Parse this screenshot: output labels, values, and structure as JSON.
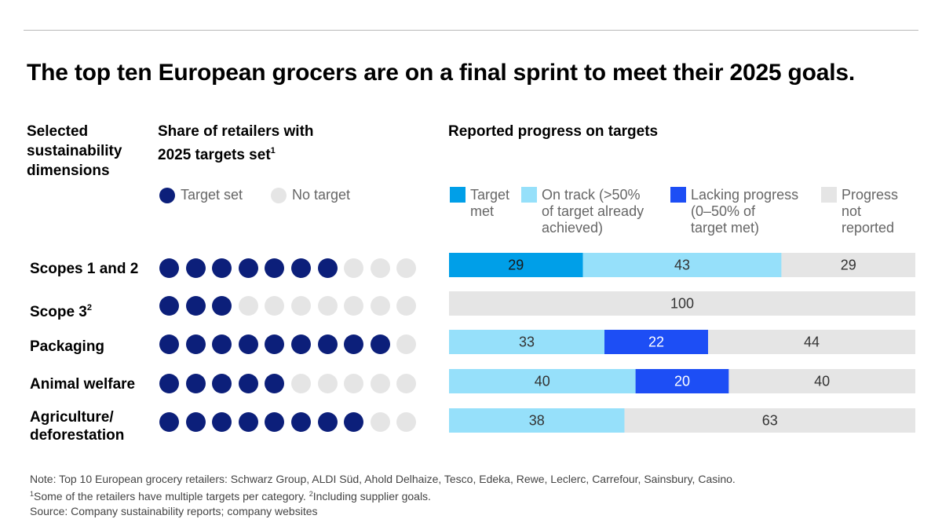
{
  "title": "The top ten European grocers are on a final sprint to meet their 2025 goals.",
  "headers": {
    "dimensions": [
      "Selected",
      "sustainability",
      "dimensions"
    ],
    "share": [
      "Share of retailers with",
      "2025 targets set"
    ],
    "share_sup": "1",
    "progress": "Reported progress on targets"
  },
  "dot_legend": {
    "target_set": "Target set",
    "no_target": "No target"
  },
  "bar_legend": [
    {
      "lines": [
        "Target",
        "met"
      ]
    },
    {
      "lines": [
        "On track (>50%",
        "of target already",
        "achieved)"
      ]
    },
    {
      "lines": [
        "Lacking progress",
        "(0–50% of",
        "target met)"
      ]
    },
    {
      "lines": [
        "Progress",
        "not",
        "reported"
      ]
    }
  ],
  "rows": [
    {
      "label": [
        "Scopes 1 and 2"
      ],
      "sup": "",
      "targets_set": 7
    },
    {
      "label": [
        "Scope 3"
      ],
      "sup": "2",
      "targets_set": 3
    },
    {
      "label": [
        "Packaging"
      ],
      "sup": "",
      "targets_set": 9
    },
    {
      "label": [
        "Animal welfare"
      ],
      "sup": "",
      "targets_set": 5
    },
    {
      "label": [
        "Agriculture/",
        "deforestation"
      ],
      "sup": "",
      "targets_set": 8
    }
  ],
  "colors": {
    "target_set": "#0c1f7a",
    "no_target": "#e5e5e5",
    "target_met": "#009fe8",
    "on_track": "#96e0fa",
    "lacking": "#1d4ef5",
    "not_reported": "#e5e5e5"
  },
  "chart_data": {
    "type": "bar",
    "orientation": "horizontal",
    "stacked": true,
    "categories": [
      "Scopes 1 and 2",
      "Scope 3",
      "Packaging",
      "Animal welfare",
      "Agriculture/deforestation"
    ],
    "series": [
      {
        "name": "Target met",
        "values": [
          29,
          0,
          0,
          0,
          0
        ]
      },
      {
        "name": "On track (>50% of target already achieved)",
        "values": [
          43,
          0,
          33,
          40,
          38
        ]
      },
      {
        "name": "Lacking progress (0–50% of target met)",
        "values": [
          0,
          0,
          22,
          20,
          0
        ]
      },
      {
        "name": "Progress not reported",
        "values": [
          29,
          100,
          44,
          40,
          63
        ]
      }
    ],
    "xlim": [
      0,
      100
    ],
    "data_labels": true
  },
  "notes": {
    "note": "Note: Top 10 European grocery retailers: Schwarz Group, ALDI Süd, Ahold Delhaize, Tesco, Edeka, Rewe, Leclerc, Carrefour, Sainsbury, Casino.",
    "fn1_sup": "1",
    "fn1": "Some of the retailers have multiple targets per category. ",
    "fn2_sup": "2",
    "fn2": "Including supplier goals.",
    "source": "Source: Company sustainability reports; company websites"
  }
}
